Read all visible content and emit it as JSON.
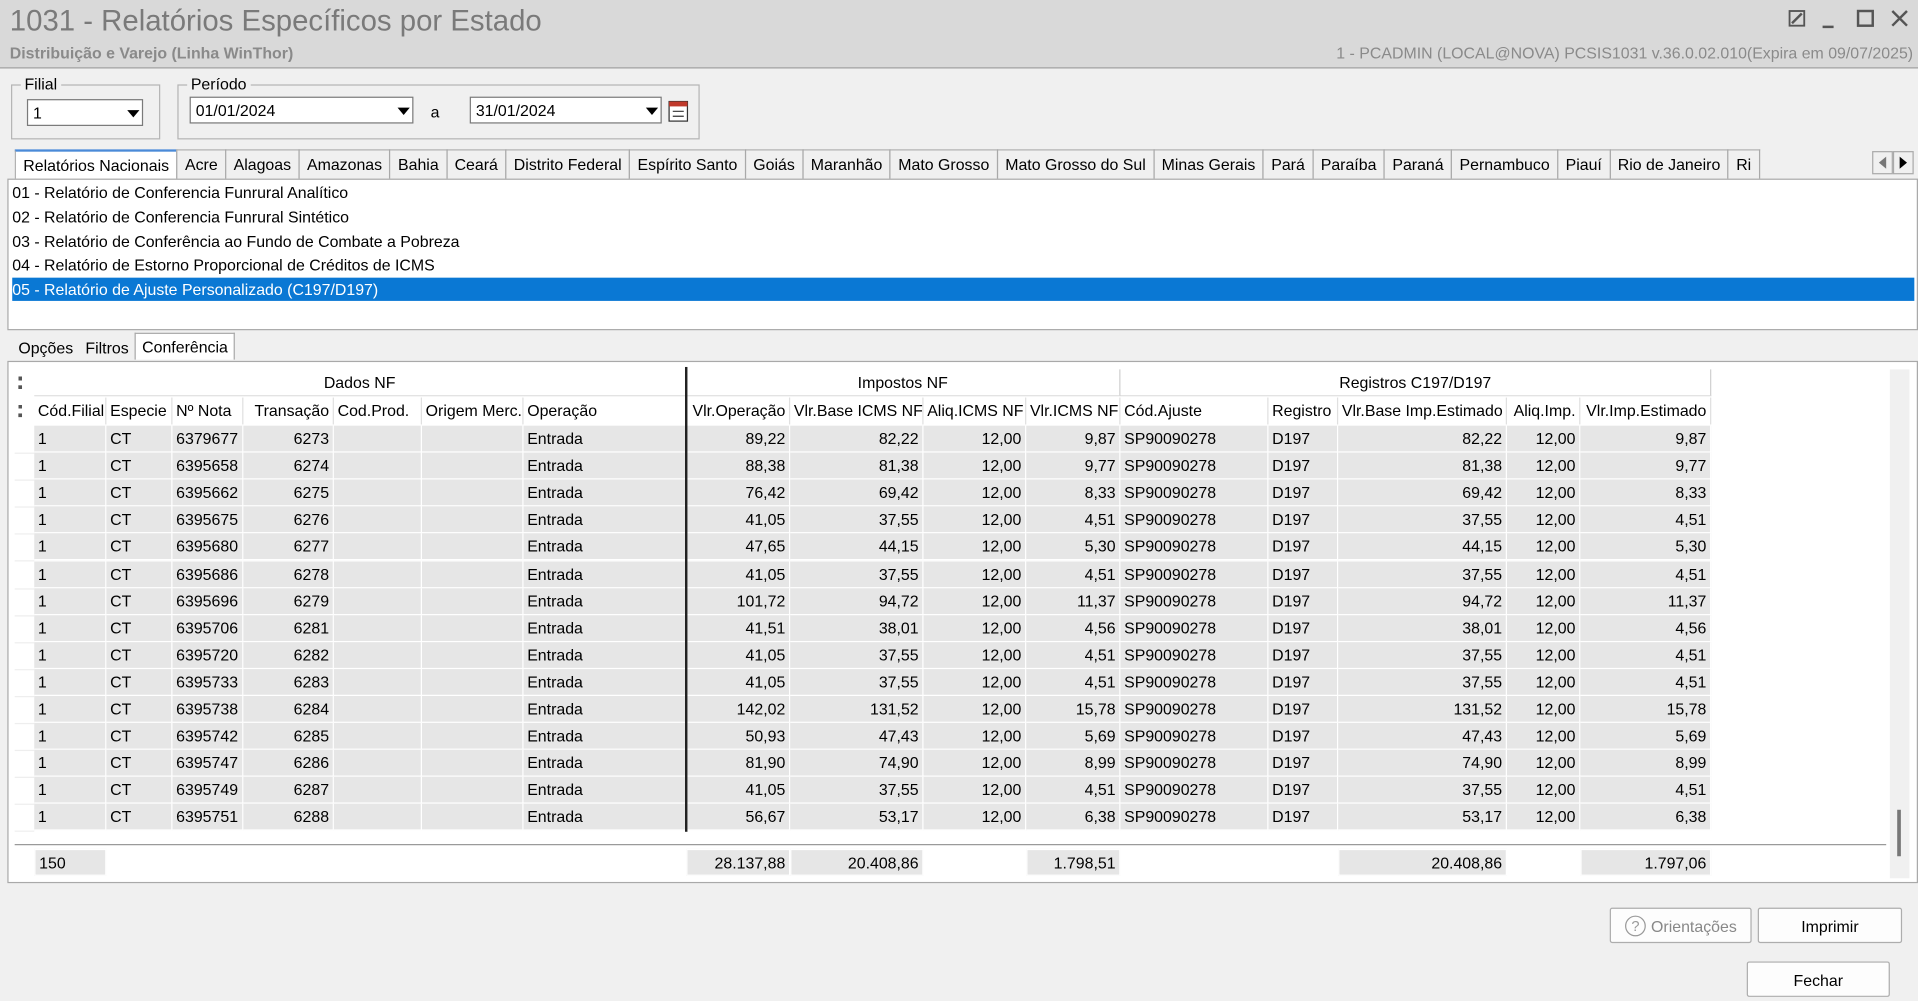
{
  "window": {
    "title": "1031 - Relatórios Específicos por Estado",
    "subtitle": "Distribuição e Varejo (Linha WinThor)",
    "status": "1 - PCADMIN (LOCAL@NOVA)   PCSIS1031  v.36.0.02.010(Expira em 09/07/2025)"
  },
  "filters": {
    "filial_label": "Filial",
    "filial_value": "1",
    "periodo_label": "Período",
    "date_from": "01/01/2024",
    "separator": "a",
    "date_to": "31/01/2024"
  },
  "tabs": {
    "items": [
      "Relatórios Nacionais",
      "Acre",
      "Alagoas",
      "Amazonas",
      "Bahia",
      "Ceará",
      "Distrito Federal",
      "Espírito Santo",
      "Goiás",
      "Maranhão",
      "Mato Grosso",
      "Mato Grosso do Sul",
      "Minas Gerais",
      "Pará",
      "Paraíba",
      "Paraná",
      "Pernambuco",
      "Piauí",
      "Rio de Janeiro",
      "Ri"
    ],
    "active": 0
  },
  "reports": {
    "items": [
      "01 - Relatório de Conferencia Funrural Analítico",
      "02 - Relatório de Conferencia Funrural Sintético",
      "03 - Relatório de Conferência ao Fundo de Combate a Pobreza",
      "04 - Relatório de Estorno Proporcional de Créditos de ICMS",
      "05 - Relatório de Ajuste Personalizado (C197/D197)"
    ],
    "selected": 4
  },
  "subtabs": {
    "items": [
      "Opções",
      "Filtros",
      "Conferência"
    ],
    "active": 2
  },
  "grid": {
    "groups": [
      {
        "label": "Dados NF",
        "span": 7
      },
      {
        "label": "Impostos NF",
        "span": 4
      },
      {
        "label": "Registros C197/D197",
        "span": 5
      }
    ],
    "columns": [
      "Cód.Filial",
      "Especie",
      "Nº Nota",
      "Transação",
      "Cod.Prod.",
      "Origem Merc.",
      "Operação",
      "Vlr.Operação",
      "Vlr.Base ICMS NF",
      "Aliq.ICMS NF",
      "Vlr.ICMS NF",
      "Cód.Ajuste",
      "Registro",
      "Vlr.Base Imp.Estimado",
      "Aliq.Imp.",
      "Vlr.Imp.Estimado"
    ],
    "rows": [
      [
        "1",
        "CT",
        "6379677",
        "6273",
        null,
        null,
        "Entrada",
        "89,22",
        "82,22",
        "12,00",
        "9,87",
        "SP90090278",
        "D197",
        "82,22",
        "12,00",
        "9,87"
      ],
      [
        "1",
        "CT",
        "6395658",
        "6274",
        null,
        null,
        "Entrada",
        "88,38",
        "81,38",
        "12,00",
        "9,77",
        "SP90090278",
        "D197",
        "81,38",
        "12,00",
        "9,77"
      ],
      [
        "1",
        "CT",
        "6395662",
        "6275",
        null,
        null,
        "Entrada",
        "76,42",
        "69,42",
        "12,00",
        "8,33",
        "SP90090278",
        "D197",
        "69,42",
        "12,00",
        "8,33"
      ],
      [
        "1",
        "CT",
        "6395675",
        "6276",
        null,
        null,
        "Entrada",
        "41,05",
        "37,55",
        "12,00",
        "4,51",
        "SP90090278",
        "D197",
        "37,55",
        "12,00",
        "4,51"
      ],
      [
        "1",
        "CT",
        "6395680",
        "6277",
        null,
        null,
        "Entrada",
        "47,65",
        "44,15",
        "12,00",
        "5,30",
        "SP90090278",
        "D197",
        "44,15",
        "12,00",
        "5,30"
      ],
      [
        "1",
        "CT",
        "6395686",
        "6278",
        null,
        null,
        "Entrada",
        "41,05",
        "37,55",
        "12,00",
        "4,51",
        "SP90090278",
        "D197",
        "37,55",
        "12,00",
        "4,51"
      ],
      [
        "1",
        "CT",
        "6395696",
        "6279",
        null,
        null,
        "Entrada",
        "101,72",
        "94,72",
        "12,00",
        "11,37",
        "SP90090278",
        "D197",
        "94,72",
        "12,00",
        "11,37"
      ],
      [
        "1",
        "CT",
        "6395706",
        "6281",
        null,
        null,
        "Entrada",
        "41,51",
        "38,01",
        "12,00",
        "4,56",
        "SP90090278",
        "D197",
        "38,01",
        "12,00",
        "4,56"
      ],
      [
        "1",
        "CT",
        "6395720",
        "6282",
        null,
        null,
        "Entrada",
        "41,05",
        "37,55",
        "12,00",
        "4,51",
        "SP90090278",
        "D197",
        "37,55",
        "12,00",
        "4,51"
      ],
      [
        "1",
        "CT",
        "6395733",
        "6283",
        null,
        null,
        "Entrada",
        "41,05",
        "37,55",
        "12,00",
        "4,51",
        "SP90090278",
        "D197",
        "37,55",
        "12,00",
        "4,51"
      ],
      [
        "1",
        "CT",
        "6395738",
        "6284",
        null,
        null,
        "Entrada",
        "142,02",
        "131,52",
        "12,00",
        "15,78",
        "SP90090278",
        "D197",
        "131,52",
        "12,00",
        "15,78"
      ],
      [
        "1",
        "CT",
        "6395742",
        "6285",
        null,
        null,
        "Entrada",
        "50,93",
        "47,43",
        "12,00",
        "5,69",
        "SP90090278",
        "D197",
        "47,43",
        "12,00",
        "5,69"
      ],
      [
        "1",
        "CT",
        "6395747",
        "6286",
        null,
        null,
        "Entrada",
        "81,90",
        "74,90",
        "12,00",
        "8,99",
        "SP90090278",
        "D197",
        "74,90",
        "12,00",
        "8,99"
      ],
      [
        "1",
        "CT",
        "6395749",
        "6287",
        null,
        null,
        "Entrada",
        "41,05",
        "37,55",
        "12,00",
        "4,51",
        "SP90090278",
        "D197",
        "37,55",
        "12,00",
        "4,51"
      ],
      [
        "1",
        "CT",
        "6395751",
        "6288",
        null,
        null,
        "Entrada",
        "56,67",
        "53,17",
        "12,00",
        "6,38",
        "SP90090278",
        "D197",
        "53,17",
        "12,00",
        "6,38"
      ]
    ],
    "footer": [
      "150",
      null,
      null,
      null,
      null,
      null,
      null,
      "28.137,88",
      "20.408,86",
      null,
      "1.798,51",
      null,
      null,
      "20.408,86",
      null,
      "1.797,06"
    ]
  },
  "buttons": {
    "help": "Orientações",
    "print": "Imprimir",
    "close": "Fechar"
  }
}
